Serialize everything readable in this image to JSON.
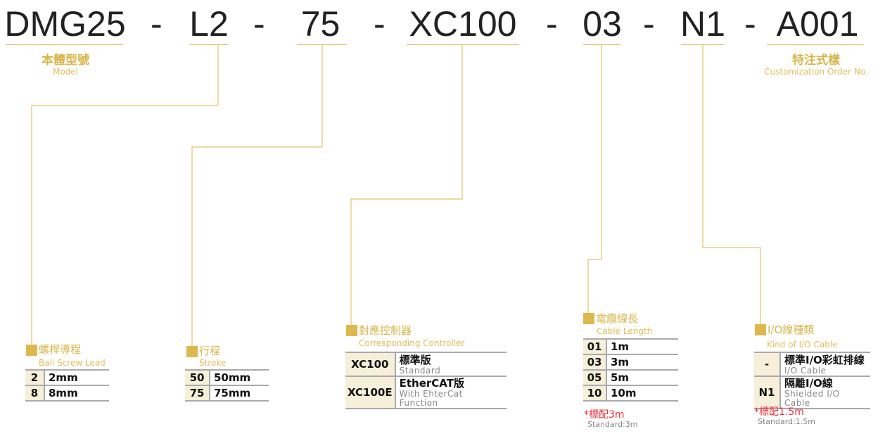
{
  "model_code": {
    "segments": [
      "DMG25",
      "L2",
      "75",
      "XC100",
      "03",
      "N1",
      "A001"
    ],
    "separator": "-"
  },
  "labels": {
    "model": {
      "zh": "本體型號",
      "en": "Model"
    },
    "custom": {
      "zh": "特注式樣",
      "en": "Customization Order No."
    }
  },
  "accent_color": "#dcb94e",
  "note_color": "#e8303a",
  "sections": {
    "lead": {
      "zh": "螺桿導程",
      "en": "Ball Screw Lead",
      "rows": [
        {
          "code": "2",
          "value": "2mm"
        },
        {
          "code": "8",
          "value": "8mm"
        }
      ]
    },
    "stroke": {
      "zh": "行程",
      "en": "Stroke",
      "rows": [
        {
          "code": "50",
          "value": "50mm"
        },
        {
          "code": "75",
          "value": "75mm"
        }
      ]
    },
    "controller": {
      "zh": "對應控制器",
      "en": "Corresponding Controller",
      "rows": [
        {
          "code": "XC100",
          "zh": "標準版",
          "en": "Standard"
        },
        {
          "code": "XC100E",
          "zh": "EtherCAT版",
          "en": "With EhterCat Function"
        }
      ]
    },
    "cable": {
      "zh": "電纜線長",
      "en": "Cable Length",
      "rows": [
        {
          "code": "01",
          "value": "1m"
        },
        {
          "code": "03",
          "value": "3m"
        },
        {
          "code": "05",
          "value": "5m"
        },
        {
          "code": "10",
          "value": "10m"
        }
      ],
      "note": "*標配3m",
      "note_en": "Standard:3m"
    },
    "io": {
      "zh": "I/O線種類",
      "en": "Kind of I/O Cable",
      "rows": [
        {
          "code": "-",
          "zh": "標準I/O彩虹排線",
          "en": "I/O Cable"
        },
        {
          "code": "N1",
          "zh": "隔離I/O線",
          "en": "Shielded I/O Cable"
        }
      ],
      "note": "*標配1.5m",
      "note_en": "Standard:1.5m"
    }
  }
}
